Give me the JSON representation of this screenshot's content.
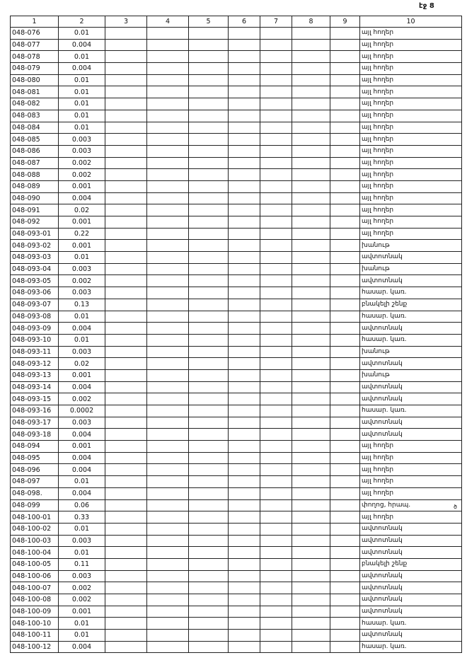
{
  "header": {
    "page": "էջ 8"
  },
  "margin_mark": "ծ",
  "table": {
    "columns": [
      "1",
      "2",
      "3",
      "4",
      "5",
      "6",
      "7",
      "8",
      "9",
      "10"
    ],
    "rows": [
      [
        "048-076",
        "0.01",
        "այլ հողեր"
      ],
      [
        "048-077",
        "0.004",
        "այլ հողեր"
      ],
      [
        "048-078",
        "0.01",
        "այլ հողեր"
      ],
      [
        "048-079",
        "0.004",
        "այլ հողեր"
      ],
      [
        "048-080",
        "0.01",
        "այլ հողեր"
      ],
      [
        "048-081",
        "0.01",
        "այլ հողեր"
      ],
      [
        "048-082",
        "0.01",
        "այլ հողեր"
      ],
      [
        "048-083",
        "0.01",
        "այլ հողեր"
      ],
      [
        "048-084",
        "0.01",
        "այլ հողեր"
      ],
      [
        "048-085",
        "0.003",
        "այլ հողեր"
      ],
      [
        "048-086",
        "0.003",
        "այլ հողեր"
      ],
      [
        "048-087",
        "0.002",
        "այլ հողեր"
      ],
      [
        "048-088",
        "0.002",
        "այլ հողեր"
      ],
      [
        "048-089",
        "0.001",
        "այլ հողեր"
      ],
      [
        "048-090",
        "0.004",
        "այլ հողեր"
      ],
      [
        "048-091",
        "0.02",
        "այլ հողեր"
      ],
      [
        "048-092",
        "0.001",
        "այլ հողեր"
      ],
      [
        "048-093-01",
        "0.22",
        "այլ հողեր"
      ],
      [
        "048-093-02",
        "0.001",
        "խանութ"
      ],
      [
        "048-093-03",
        "0.01",
        "ավտոտնակ"
      ],
      [
        "048-093-04",
        "0.003",
        "խանութ"
      ],
      [
        "048-093-05",
        "0.002",
        "ավտոտնակ"
      ],
      [
        "048-093-06",
        "0.003",
        "հասար. կառ."
      ],
      [
        "048-093-07",
        "0.13",
        "բնակելի շենք"
      ],
      [
        "048-093-08",
        "0.01",
        "հասար. կառ."
      ],
      [
        "048-093-09",
        "0.004",
        "ավտոտնակ"
      ],
      [
        "048-093-10",
        "0.01",
        "հասար. կառ."
      ],
      [
        "048-093-11",
        "0.003",
        "խանութ"
      ],
      [
        "048-093-12",
        "0.02",
        "ավտոտնակ"
      ],
      [
        "048-093-13",
        "0.001",
        "խանութ"
      ],
      [
        "048-093-14",
        "0.004",
        "ավտոտնակ"
      ],
      [
        "048-093-15",
        "0.002",
        "ավտոտնակ"
      ],
      [
        "048-093-16",
        "0.0002",
        "հասար. կառ."
      ],
      [
        "048-093-17",
        "0.003",
        "ավտոտնակ"
      ],
      [
        "048-093-18",
        "0.004",
        "ավտոտնակ"
      ],
      [
        "048-094",
        "0.001",
        "այլ հողեր"
      ],
      [
        "048-095",
        "0.004",
        "այլ հողեր"
      ],
      [
        "048-096",
        "0.004",
        "այլ հողեր"
      ],
      [
        "048-097",
        "0.01",
        "այլ հողեր"
      ],
      [
        "048-098.",
        "0.004",
        "այլ հողեր"
      ],
      [
        "048-099",
        "0.06",
        "փողոց, հրապ."
      ],
      [
        "048-100-01",
        "0.33",
        "այլ հողեր"
      ],
      [
        "048-100-02",
        "0.01",
        "ավտոտնակ"
      ],
      [
        "048-100-03",
        "0.003",
        "ավտոտնակ"
      ],
      [
        "048-100-04",
        "0.01",
        "ավտոտնակ"
      ],
      [
        "048-100-05",
        "0.11",
        "բնակելի շենք"
      ],
      [
        "048-100-06",
        "0.003",
        "ավտոտնակ"
      ],
      [
        "048-100-07",
        "0.002",
        "ավտոտնակ"
      ],
      [
        "048-100-08",
        "0.002",
        "ավտոտնակ"
      ],
      [
        "048-100-09",
        "0.001",
        "ավտոտնակ"
      ],
      [
        "048-100-10",
        "0.01",
        "հասար. կառ."
      ],
      [
        "048-100-11",
        "0.01",
        "ավտոտնակ"
      ],
      [
        "048-100-12",
        "0.004",
        "հասար. կառ."
      ]
    ]
  }
}
